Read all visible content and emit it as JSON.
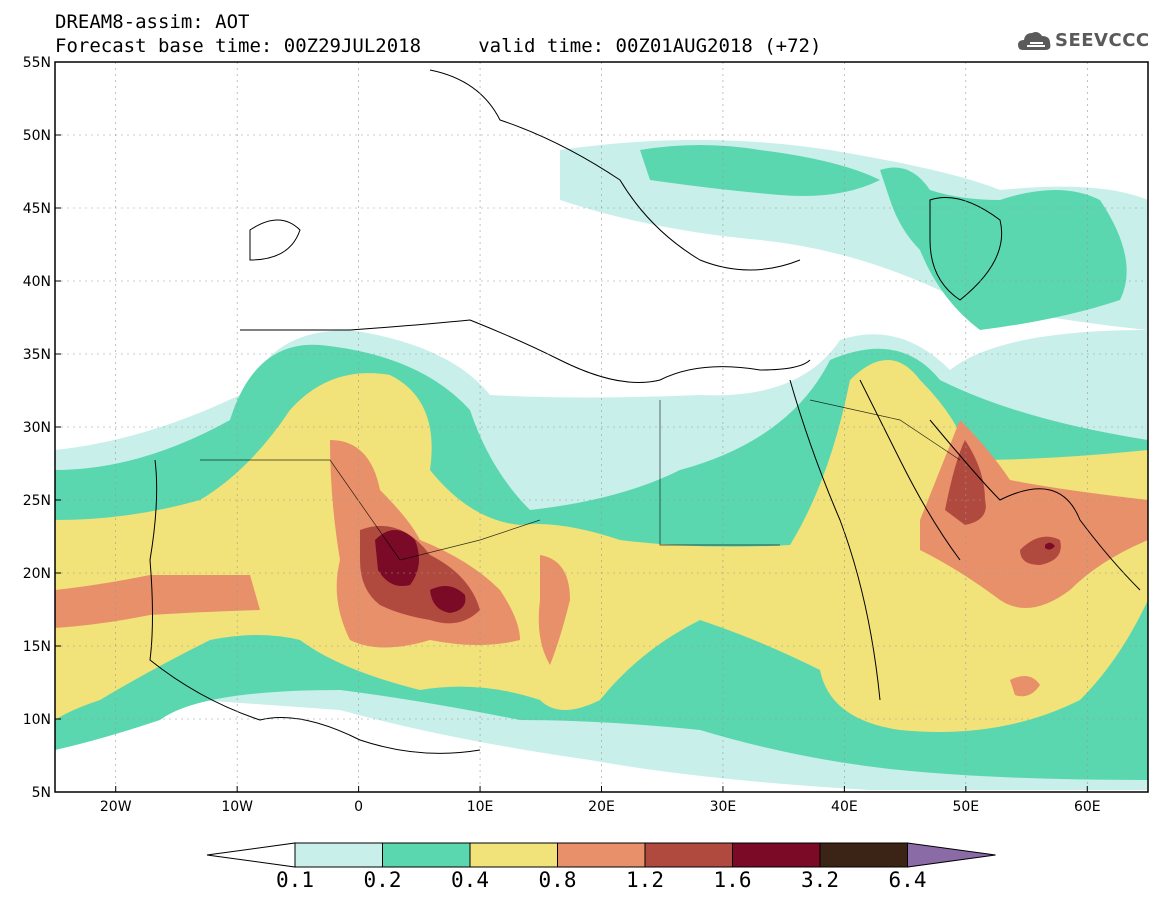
{
  "header": {
    "title_line1": "DREAM8-assim: AOT",
    "title_line2": "Forecast base time: 00Z29JUL2018     valid time: 00Z01AUG2018 (+72)"
  },
  "logo": {
    "icon": "cloud-icon",
    "text": "SEEVCCC"
  },
  "map": {
    "variable": "AOT",
    "lat_range": [
      5,
      55
    ],
    "lon_range": [
      -25,
      65
    ],
    "lat_ticks": [
      "55N",
      "50N",
      "45N",
      "40N",
      "35N",
      "30N",
      "25N",
      "20N",
      "15N",
      "10N",
      "5N"
    ],
    "lon_ticks": [
      "20W",
      "10W",
      "0",
      "10E",
      "20E",
      "30E",
      "40E",
      "50E",
      "60E"
    ]
  },
  "colorbar": {
    "levels": [
      "0.1",
      "0.2",
      "0.4",
      "0.8",
      "1.2",
      "1.6",
      "3.2",
      "6.4"
    ],
    "colors": [
      "#ffffff",
      "#c8efea",
      "#5bd7b0",
      "#f2e27a",
      "#e8906a",
      "#b04a3f",
      "#7a0a26",
      "#3b2416",
      "#8a6ba6"
    ]
  }
}
